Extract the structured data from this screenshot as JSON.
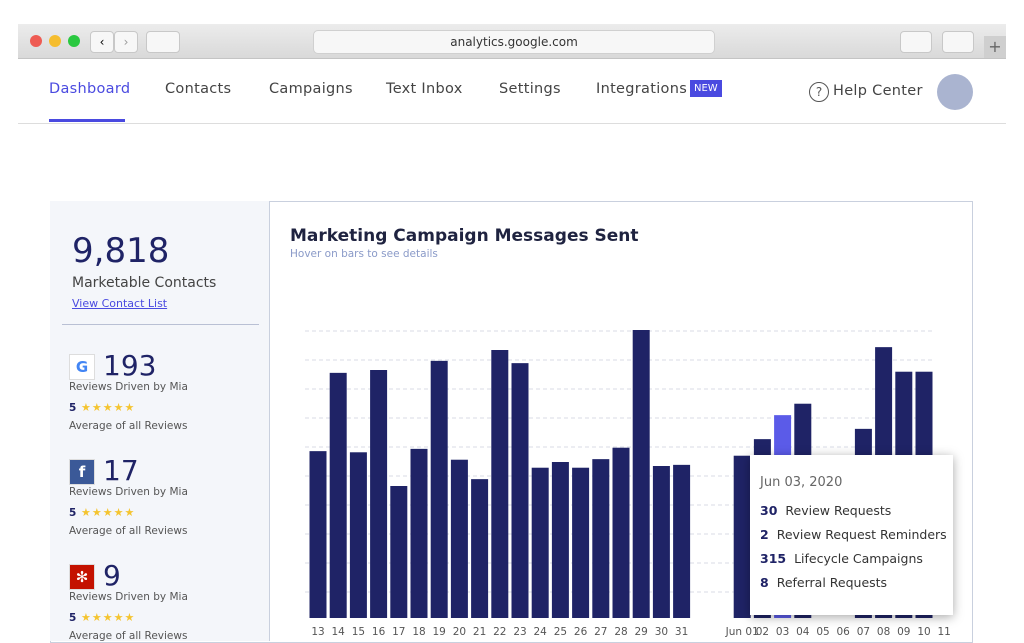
{
  "browser": {
    "url": "analytics.google.com"
  },
  "nav": {
    "items": [
      "Dashboard",
      "Contacts",
      "Campaigns",
      "Text Inbox",
      "Settings",
      "Integrations"
    ],
    "badge": "NEW",
    "help": "Help Center"
  },
  "sidebar": {
    "contacts": {
      "value": "9,818",
      "label": "Marketable Contacts",
      "link": "View Contact List"
    },
    "reviews": [
      {
        "count": "193",
        "label": "Reviews Driven by Mia",
        "rating": "5",
        "rating_label": "Average of all Reviews"
      },
      {
        "count": "17",
        "label": "Reviews Driven by Mia",
        "rating": "5",
        "rating_label": "Average of all Reviews"
      },
      {
        "count": "9",
        "label": "Reviews Driven by Mia",
        "rating": "5",
        "rating_label": "Average of all Reviews"
      }
    ]
  },
  "chart_data": {
    "type": "bar",
    "title": "Marketing Campaign Messages Sent",
    "subtitle": "Hover on bars to see details",
    "categories": [
      "13",
      "14",
      "15",
      "16",
      "17",
      "18",
      "19",
      "20",
      "21",
      "22",
      "23",
      "24",
      "25",
      "26",
      "27",
      "28",
      "29",
      "30",
      "31",
      null,
      null,
      "Jun 01",
      "02",
      "03",
      "04",
      "05",
      "06",
      "07",
      "08",
      "09",
      "10",
      "11"
    ],
    "values": [
      292,
      429,
      290,
      434,
      231,
      296,
      450,
      277,
      243,
      469,
      446,
      263,
      273,
      263,
      278,
      298,
      504,
      266,
      268,
      null,
      null,
      284,
      313,
      355,
      375,
      null,
      null,
      331,
      474,
      431,
      431,
      null
    ],
    "color": "#1f2366",
    "highlight_color": "#5b5be8",
    "highlight_category": "03",
    "ylim": [
      0,
      560
    ],
    "grid": true
  },
  "tooltip": {
    "date": "Jun 03, 2020",
    "rows": [
      {
        "count": "30",
        "label": "Review Requests"
      },
      {
        "count": "2",
        "label": "Review Request Reminders"
      },
      {
        "count": "315",
        "label": "Lifecycle Campaigns"
      },
      {
        "count": "8",
        "label": "Referral Requests"
      }
    ]
  }
}
